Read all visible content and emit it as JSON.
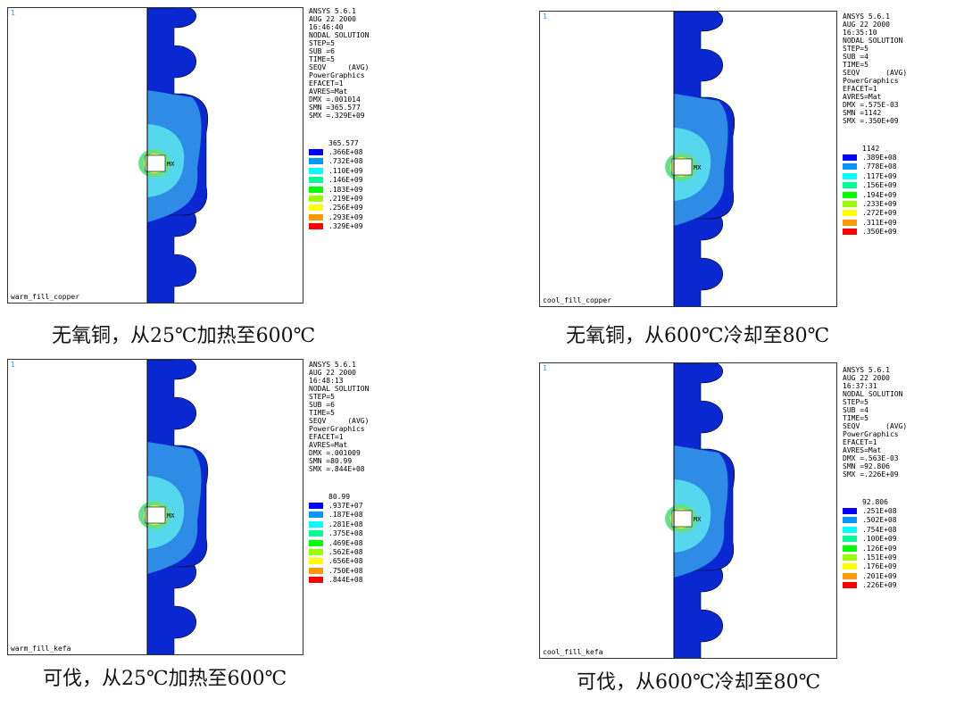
{
  "panels": [
    {
      "window_number": "1",
      "plot_name": "warm_fill_copper",
      "info_lines": [
        "ANSYS 5.6.1",
        "AUG 22 2000",
        "16:46:40",
        "NODAL SOLUTION",
        "STEP=5",
        "SUB =6",
        "TIME=5",
        "SEQV     (AVG)",
        "PowerGraphics",
        "EFACET=1",
        "AVRES=Mat",
        "DMX =.001014",
        "SMN =365.577",
        "SMX =.329E+09"
      ],
      "legend_min": "365.577",
      "legend_values": [
        ".366E+08",
        ".732E+08",
        ".110E+09",
        ".146E+09",
        ".183E+09",
        ".219E+09",
        ".256E+09",
        ".293E+09",
        ".329E+09"
      ],
      "max_label": "MX",
      "caption": "无氧铜，从25℃加热至600℃"
    },
    {
      "window_number": "1",
      "plot_name": "cool_fill_copper",
      "info_lines": [
        "ANSYS 5.6.1",
        "AUG 22 2000",
        "16:35:10",
        "NODAL SOLUTION",
        "STEP=5",
        "SUB =4",
        "TIME=5",
        "SEQV      (AVG)",
        "PowerGraphics",
        "EFACET=1",
        "AVRES=Mat",
        "DMX =.575E-03",
        "SMN =1142",
        "SMX =.350E+09"
      ],
      "legend_min": "1142",
      "legend_values": [
        ".389E+08",
        ".778E+08",
        ".117E+09",
        ".156E+09",
        ".194E+09",
        ".233E+09",
        ".272E+09",
        ".311E+09",
        ".350E+09"
      ],
      "max_label": "MX",
      "caption": "无氧铜，从600℃冷却至80℃"
    },
    {
      "window_number": "1",
      "plot_name": "warm_fill_kefa",
      "info_lines": [
        "ANSYS 5.6.1",
        "AUG 22 2000",
        "16:48:13",
        "NODAL SOLUTION",
        "STEP=5",
        "SUB =6",
        "TIME=5",
        "SEQV     (AVG)",
        "PowerGraphics",
        "EFACET=1",
        "AVRES=Mat",
        "DMX =.001009",
        "SMN =80.99",
        "SMX =.844E+08"
      ],
      "legend_min": "80.99",
      "legend_values": [
        ".937E+07",
        ".187E+08",
        ".281E+08",
        ".375E+08",
        ".469E+08",
        ".562E+08",
        ".656E+08",
        ".750E+08",
        ".844E+08"
      ],
      "max_label": "MX",
      "caption": "可伐，从25℃加热至600℃"
    },
    {
      "window_number": "1",
      "plot_name": "cool_fill_kefa",
      "info_lines": [
        "ANSYS 5.6.1",
        "AUG 22 2000",
        "16:37:31",
        "NODAL SOLUTION",
        "STEP=5",
        "SUB =4",
        "TIME=5",
        "SEQV      (AVG)",
        "PowerGraphics",
        "EFACET=1",
        "AVRES=Mat",
        "DMX =.563E-03",
        "SMN =92.806",
        "SMX =.226E+09"
      ],
      "legend_min": "92.806",
      "legend_values": [
        ".251E+08",
        ".502E+08",
        ".754E+08",
        ".100E+09",
        ".126E+09",
        ".151E+09",
        ".176E+09",
        ".201E+09",
        ".226E+09"
      ],
      "max_label": "MX",
      "caption": "可伐，从600℃冷却至80℃"
    }
  ],
  "legend_colors": [
    "#0000ff",
    "#0099ff",
    "#00ffff",
    "#00ff99",
    "#00ff00",
    "#99ff00",
    "#ffff00",
    "#ff9900",
    "#ff0000"
  ],
  "fill_colors": {
    "dark": "#0a28d2",
    "light": "#2e8be6",
    "cyan": "#55d8ee",
    "green": "#66e088",
    "yellow": "#e8f040",
    "red": "#ee2020"
  }
}
